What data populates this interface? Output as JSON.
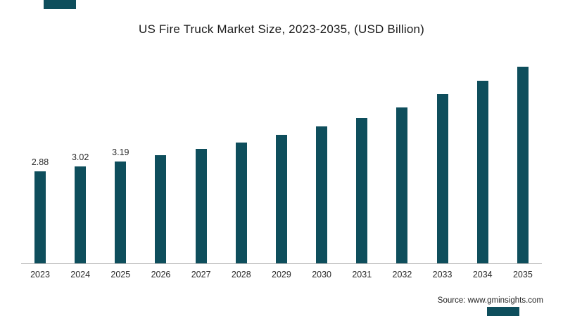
{
  "title": "US Fire Truck Market Size, 2023-2035, (USD Billion)",
  "source": "Source: www.gminsights.com",
  "colors": {
    "bar": "#0e4e5c",
    "accent": "#0e4e5c",
    "axis": "#b9b9b9"
  },
  "chart_data": {
    "type": "bar",
    "title": "US Fire Truck Market Size, 2023-2035, (USD Billion)",
    "categories": [
      "2023",
      "2024",
      "2025",
      "2026",
      "2027",
      "2028",
      "2029",
      "2030",
      "2031",
      "2032",
      "2033",
      "2034",
      "2035"
    ],
    "values": [
      2.88,
      3.02,
      3.19,
      3.37,
      3.57,
      3.78,
      4.01,
      4.27,
      4.55,
      4.88,
      5.28,
      5.7,
      6.15
    ],
    "value_labels": [
      "2.88",
      "3.02",
      "3.19",
      "",
      "",
      "",
      "",
      "",
      "",
      "",
      "",
      "",
      ""
    ],
    "xlabel": "",
    "ylabel": "",
    "ylim": [
      0,
      6.8
    ],
    "grid": false,
    "legend_position": "none",
    "bar_color": "#0e4e5c"
  }
}
